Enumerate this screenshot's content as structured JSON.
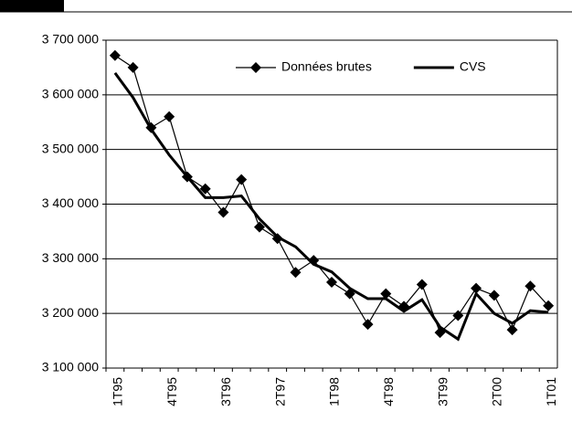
{
  "chart_data": {
    "type": "line",
    "categories": [
      "1T95",
      null,
      null,
      "4T95",
      null,
      null,
      "3T96",
      null,
      null,
      "2T97",
      null,
      null,
      "1T98",
      null,
      null,
      "4T98",
      null,
      null,
      "3T99",
      null,
      null,
      "2T00",
      null,
      null,
      "1T01"
    ],
    "series": [
      {
        "name": "Données brutes",
        "color": "#000000",
        "marker": "diamond",
        "values": [
          3672000,
          3650000,
          3540000,
          3560000,
          3450000,
          3428000,
          3385000,
          3445000,
          3358000,
          3337000,
          3275000,
          3297000,
          3257000,
          3236000,
          3180000,
          3236000,
          3213000,
          3253000,
          3165000,
          3196000,
          3246000,
          3233000,
          3170000,
          3250000,
          3214000
        ]
      },
      {
        "name": "CVS",
        "color": "#000000",
        "marker": "none",
        "values": [
          3640000,
          3595000,
          3537000,
          3490000,
          3450000,
          3412000,
          3412000,
          3415000,
          3373000,
          3340000,
          3322000,
          3290000,
          3276000,
          3246000,
          3227000,
          3227000,
          3204000,
          3225000,
          3175000,
          3153000,
          3236000,
          3200000,
          3182000,
          3205000,
          3202000
        ]
      }
    ],
    "ylim": [
      3100000,
      3700000
    ],
    "yticks": [
      {
        "value": 3100000,
        "label": "3 100 000"
      },
      {
        "value": 3200000,
        "label": "3 200 000"
      },
      {
        "value": 3300000,
        "label": "3 300 000"
      },
      {
        "value": 3400000,
        "label": "3 400 000"
      },
      {
        "value": 3500000,
        "label": "3 500 000"
      },
      {
        "value": 3600000,
        "label": "3 600 000"
      },
      {
        "value": 3700000,
        "label": "3 700 000"
      }
    ],
    "grid": true,
    "legend": "top-right"
  }
}
